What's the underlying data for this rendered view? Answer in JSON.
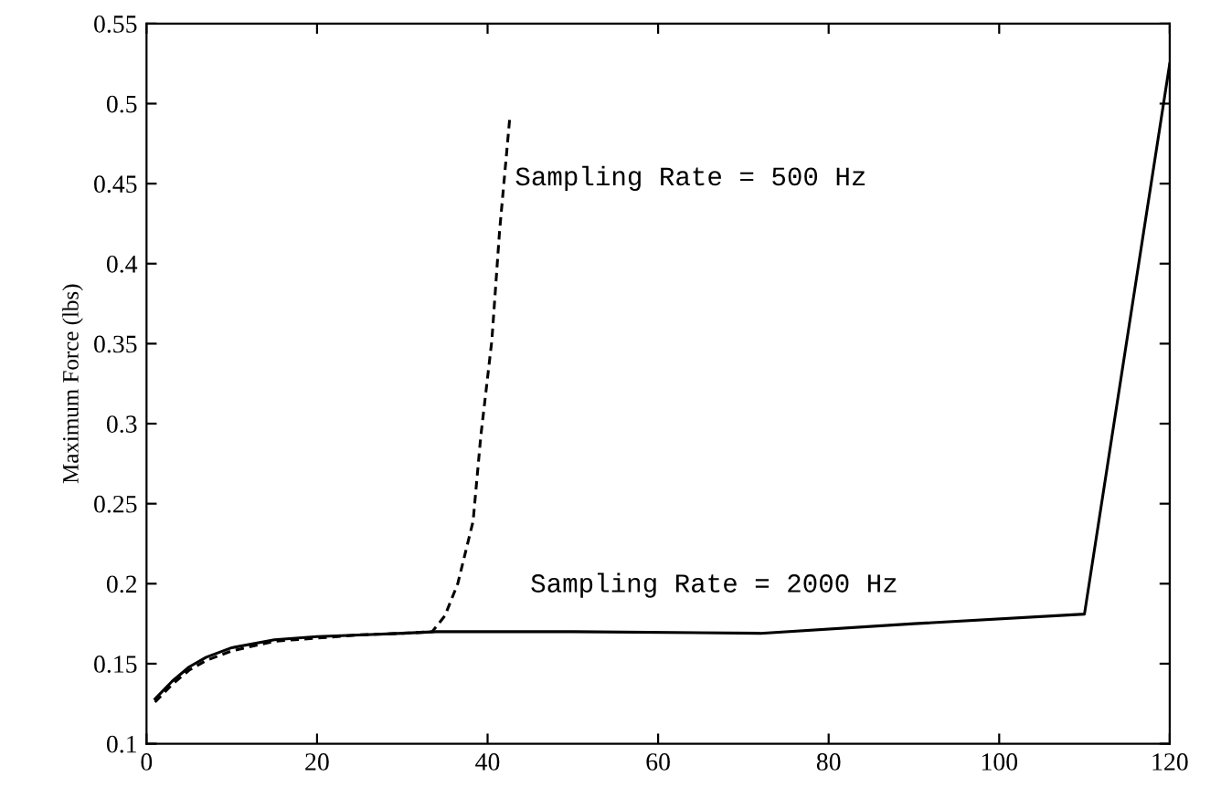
{
  "chart_data": {
    "type": "line",
    "ylabel": "Maximum Force (lbs)",
    "series": [
      {
        "color": "#000000",
        "line_style": "solid",
        "x": [
          1,
          3,
          5,
          7,
          10,
          15,
          20,
          25,
          30,
          34,
          50,
          72,
          90,
          110,
          120
        ],
        "values": [
          0.128,
          0.139,
          0.148,
          0.154,
          0.16,
          0.165,
          0.167,
          0.168,
          0.169,
          0.17,
          0.17,
          0.169,
          0.175,
          0.181,
          0.525
        ]
      },
      {
        "color": "#000000",
        "line_style": "dashed",
        "x": [
          1,
          3,
          5,
          7,
          10,
          15,
          20,
          25,
          30,
          33.5,
          35,
          36.5,
          38.3,
          39.2,
          40.5,
          41.4,
          42.6
        ],
        "values": [
          0.126,
          0.137,
          0.146,
          0.152,
          0.158,
          0.164,
          0.166,
          0.168,
          0.169,
          0.17,
          0.18,
          0.2,
          0.239,
          0.292,
          0.352,
          0.42,
          0.491
        ]
      }
    ],
    "annotations": [
      "Sampling Rate = 500 Hz",
      "Sampling Rate = 2000 Hz"
    ],
    "xlim": [
      0,
      120
    ],
    "ylim": [
      0.1,
      0.55
    ],
    "xticks": [
      0,
      20,
      40,
      60,
      80,
      100,
      120
    ],
    "yticks": [
      0.1,
      0.15,
      0.2,
      0.25,
      0.3,
      0.35,
      0.4,
      0.45,
      0.5,
      0.55
    ],
    "grid": false,
    "legend": false,
    "marker": "none"
  }
}
